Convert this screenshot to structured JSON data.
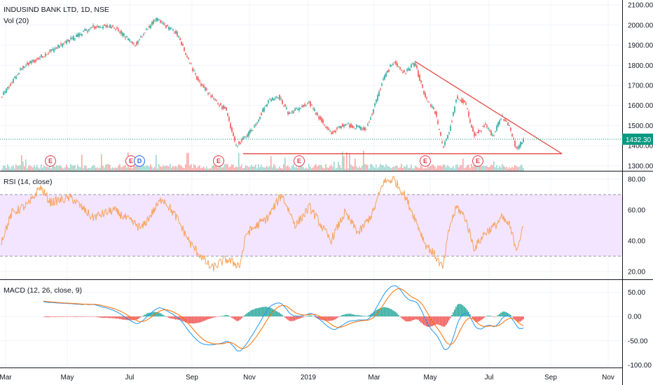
{
  "header": {
    "symbol_title": "INDUSIND BANK LTD, 1D, NSE",
    "volume_label": "Vol (20)"
  },
  "price_panel": {
    "y_ticks": [
      "2100.00",
      "2000.00",
      "1900.00",
      "1800.00",
      "1700.00",
      "1600.00",
      "1500.00",
      "1400.00",
      "1300.00"
    ],
    "y_tick_values": [
      2100,
      2000,
      1900,
      1800,
      1700,
      1600,
      1500,
      1400,
      1300
    ],
    "ylim": [
      1275,
      2125
    ],
    "last_price": "1432.30",
    "last_price_value": 1432.3,
    "colors": {
      "up": "#26a69a",
      "down": "#ef5350",
      "trendline": "#e53935",
      "last_price": "#089981"
    }
  },
  "events": [
    {
      "label": "E",
      "kind": "earnings",
      "x_index": 70
    },
    {
      "label": "E",
      "kind": "earnings",
      "x_index": 185
    },
    {
      "label": "D",
      "kind": "dividend",
      "x_index": 197
    },
    {
      "label": "E",
      "kind": "earnings",
      "x_index": 310
    },
    {
      "label": "E",
      "kind": "earnings",
      "x_index": 425
    },
    {
      "label": "E",
      "kind": "earnings",
      "x_index": 605
    },
    {
      "label": "E",
      "kind": "earnings",
      "x_index": 680
    }
  ],
  "rsi_panel": {
    "label": "RSI (14, close)",
    "y_ticks": [
      "80.00",
      "60.00",
      "40.00",
      "20.00"
    ],
    "y_tick_values": [
      80,
      60,
      40,
      20
    ],
    "ylim": [
      15,
      85
    ],
    "band": [
      30,
      70
    ],
    "colors": {
      "line": "#f7a35c",
      "band": "#f3e5ff"
    }
  },
  "macd_panel": {
    "label": "MACD (12, 26, close, 9)",
    "y_ticks": [
      "50.00",
      "0.00",
      "-50.00",
      "-100.00"
    ],
    "y_tick_values": [
      50,
      0,
      -50,
      -100
    ],
    "ylim": [
      -105,
      75
    ],
    "colors": {
      "macd": "#2196f3",
      "signal": "#ff6d00",
      "hist_up": "#26a69a",
      "hist_down": "#ef5350"
    }
  },
  "x_axis": {
    "ticks": [
      "Mar",
      "May",
      "Jul",
      "Sep",
      "Nov",
      "2019",
      "Mar",
      "May",
      "Jul",
      "Sep",
      "Nov"
    ]
  },
  "chart_data": {
    "type": "candlestick",
    "title": "INDUSIND BANK LTD, 1D, NSE",
    "x_range": [
      "2018-03",
      "2019-11"
    ],
    "price_keypoints": [
      [
        0,
        1640
      ],
      [
        30,
        1790
      ],
      [
        60,
        1850
      ],
      [
        100,
        1930
      ],
      [
        130,
        1990
      ],
      [
        160,
        1995
      ],
      [
        190,
        1900
      ],
      [
        220,
        2030
      ],
      [
        250,
        1960
      ],
      [
        280,
        1730
      ],
      [
        300,
        1640
      ],
      [
        320,
        1580
      ],
      [
        335,
        1400
      ],
      [
        345,
        1430
      ],
      [
        360,
        1490
      ],
      [
        380,
        1620
      ],
      [
        395,
        1650
      ],
      [
        410,
        1560
      ],
      [
        440,
        1610
      ],
      [
        470,
        1460
      ],
      [
        490,
        1510
      ],
      [
        520,
        1480
      ],
      [
        530,
        1570
      ],
      [
        545,
        1730
      ],
      [
        560,
        1820
      ],
      [
        575,
        1760
      ],
      [
        590,
        1810
      ],
      [
        605,
        1640
      ],
      [
        620,
        1560
      ],
      [
        630,
        1390
      ],
      [
        640,
        1480
      ],
      [
        650,
        1640
      ],
      [
        662,
        1610
      ],
      [
        675,
        1450
      ],
      [
        690,
        1500
      ],
      [
        702,
        1450
      ],
      [
        714,
        1550
      ],
      [
        725,
        1500
      ],
      [
        735,
        1380
      ],
      [
        745,
        1432
      ]
    ],
    "rsi_keypoints": [
      [
        0,
        40
      ],
      [
        15,
        58
      ],
      [
        40,
        64
      ],
      [
        55,
        75
      ],
      [
        70,
        65
      ],
      [
        100,
        68
      ],
      [
        130,
        55
      ],
      [
        160,
        60
      ],
      [
        200,
        48
      ],
      [
        230,
        68
      ],
      [
        250,
        55
      ],
      [
        270,
        38
      ],
      [
        300,
        22
      ],
      [
        320,
        28
      ],
      [
        340,
        24
      ],
      [
        350,
        45
      ],
      [
        380,
        55
      ],
      [
        400,
        70
      ],
      [
        420,
        50
      ],
      [
        440,
        62
      ],
      [
        470,
        40
      ],
      [
        490,
        58
      ],
      [
        510,
        45
      ],
      [
        530,
        58
      ],
      [
        545,
        78
      ],
      [
        560,
        80
      ],
      [
        575,
        70
      ],
      [
        590,
        55
      ],
      [
        605,
        38
      ],
      [
        620,
        30
      ],
      [
        630,
        22
      ],
      [
        640,
        50
      ],
      [
        650,
        62
      ],
      [
        662,
        55
      ],
      [
        675,
        35
      ],
      [
        690,
        45
      ],
      [
        705,
        50
      ],
      [
        714,
        55
      ],
      [
        725,
        50
      ],
      [
        735,
        35
      ],
      [
        745,
        48
      ]
    ],
    "trendlines": [
      {
        "from": [
          345,
          1360
        ],
        "to": [
          800,
          1360
        ]
      },
      {
        "from": [
          590,
          1820
        ],
        "to": [
          800,
          1360
        ]
      }
    ]
  }
}
